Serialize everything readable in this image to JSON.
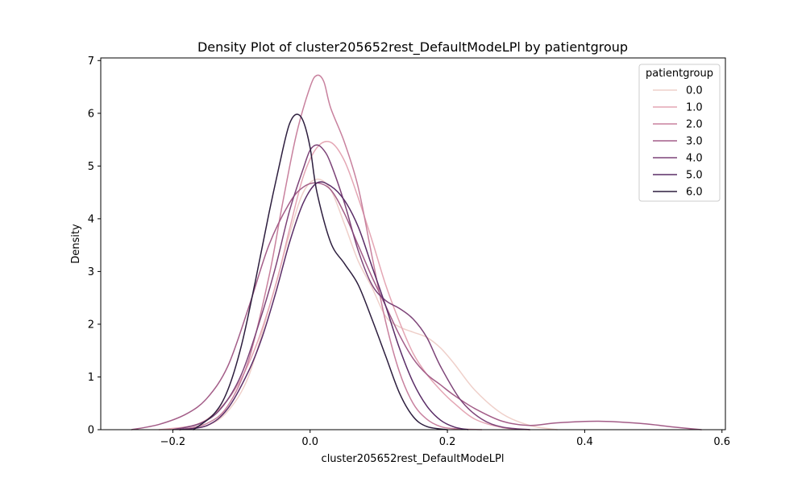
{
  "chart_data": {
    "type": "line",
    "kind": "kde-density",
    "title": "Density Plot of cluster205652rest_DefaultModeLPl by patientgroup",
    "xlabel": "cluster205652rest_DefaultModeLPl",
    "ylabel": "Density",
    "xlim": [
      -0.305,
      0.605
    ],
    "ylim": [
      0,
      7.05
    ],
    "xticks": [
      -0.2,
      0.0,
      0.2,
      0.4,
      0.6
    ],
    "xtick_labels": [
      "−0.2",
      "0.0",
      "0.2",
      "0.4",
      "0.6"
    ],
    "yticks": [
      0,
      1,
      2,
      3,
      4,
      5,
      6,
      7
    ],
    "ytick_labels": [
      "0",
      "1",
      "2",
      "3",
      "4",
      "5",
      "6",
      "7"
    ],
    "grid": false,
    "legend": {
      "title": "patientgroup",
      "placement": "top-right"
    },
    "series": [
      {
        "name": "0.0",
        "color": "#efd0ca",
        "x": [
          -0.19,
          -0.15,
          -0.12,
          -0.09,
          -0.06,
          -0.03,
          -0.01,
          0.01,
          0.03,
          0.05,
          0.07,
          0.09,
          0.11,
          0.13,
          0.15,
          0.17,
          0.19,
          0.21,
          0.24,
          0.28,
          0.32,
          0.36
        ],
        "y": [
          0.0,
          0.08,
          0.35,
          1.0,
          2.3,
          3.7,
          4.5,
          4.75,
          4.55,
          3.9,
          3.2,
          2.7,
          2.15,
          1.95,
          1.85,
          1.75,
          1.55,
          1.25,
          0.75,
          0.3,
          0.08,
          0.0
        ]
      },
      {
        "name": "1.0",
        "color": "#e4a6b4",
        "x": [
          -0.22,
          -0.17,
          -0.14,
          -0.11,
          -0.08,
          -0.05,
          -0.03,
          -0.01,
          0.01,
          0.03,
          0.05,
          0.07,
          0.09,
          0.11,
          0.13,
          0.15,
          0.17,
          0.19,
          0.21,
          0.24,
          0.28,
          0.32
        ],
        "y": [
          0.0,
          0.08,
          0.3,
          0.75,
          1.55,
          2.75,
          3.8,
          4.8,
          5.35,
          5.45,
          5.1,
          4.4,
          3.6,
          2.75,
          2.05,
          1.45,
          1.05,
          0.75,
          0.5,
          0.2,
          0.04,
          0.0
        ]
      },
      {
        "name": "2.0",
        "color": "#c8819e",
        "x": [
          -0.19,
          -0.15,
          -0.12,
          -0.09,
          -0.06,
          -0.04,
          -0.02,
          0.0,
          0.01,
          0.02,
          0.03,
          0.05,
          0.07,
          0.09,
          0.11,
          0.13,
          0.15,
          0.17,
          0.19,
          0.21,
          0.25
        ],
        "y": [
          0.0,
          0.12,
          0.45,
          1.3,
          2.9,
          4.3,
          5.6,
          6.5,
          6.72,
          6.6,
          6.1,
          5.45,
          4.6,
          3.3,
          2.05,
          1.1,
          0.5,
          0.2,
          0.06,
          0.02,
          0.0
        ]
      },
      {
        "name": "3.0",
        "color": "#a35d88",
        "x": [
          -0.26,
          -0.22,
          -0.18,
          -0.15,
          -0.12,
          -0.09,
          -0.06,
          -0.03,
          -0.01,
          0.01,
          0.03,
          0.05,
          0.07,
          0.09,
          0.11,
          0.13,
          0.15,
          0.17,
          0.19,
          0.21,
          0.24,
          0.28,
          0.32,
          0.36,
          0.42,
          0.48,
          0.53,
          0.57
        ],
        "y": [
          0.0,
          0.1,
          0.3,
          0.6,
          1.2,
          2.3,
          3.5,
          4.3,
          4.6,
          4.68,
          4.55,
          4.1,
          3.5,
          2.9,
          2.35,
          1.8,
          1.35,
          1.05,
          0.85,
          0.65,
          0.4,
          0.16,
          0.08,
          0.13,
          0.16,
          0.12,
          0.05,
          0.0
        ]
      },
      {
        "name": "4.0",
        "color": "#7d4478",
        "x": [
          -0.2,
          -0.16,
          -0.13,
          -0.1,
          -0.07,
          -0.05,
          -0.03,
          -0.01,
          0.0,
          0.01,
          0.02,
          0.03,
          0.05,
          0.07,
          0.09,
          0.11,
          0.13,
          0.15,
          0.17,
          0.19,
          0.22,
          0.25,
          0.28,
          0.32
        ],
        "y": [
          0.0,
          0.12,
          0.4,
          1.05,
          2.2,
          3.1,
          4.15,
          4.95,
          5.3,
          5.4,
          5.3,
          5.05,
          4.3,
          3.4,
          2.75,
          2.45,
          2.3,
          2.1,
          1.75,
          1.2,
          0.55,
          0.2,
          0.05,
          0.0
        ]
      },
      {
        "name": "5.0",
        "color": "#5a2d67",
        "x": [
          -0.19,
          -0.15,
          -0.12,
          -0.09,
          -0.07,
          -0.05,
          -0.03,
          -0.01,
          0.01,
          0.03,
          0.05,
          0.07,
          0.09,
          0.11,
          0.13,
          0.15,
          0.17,
          0.19,
          0.21,
          0.23
        ],
        "y": [
          0.0,
          0.08,
          0.4,
          1.1,
          1.75,
          2.6,
          3.55,
          4.3,
          4.68,
          4.62,
          4.35,
          3.85,
          3.1,
          2.35,
          1.55,
          0.9,
          0.45,
          0.18,
          0.05,
          0.0
        ]
      },
      {
        "name": "6.0",
        "color": "#2d1e3e",
        "x": [
          -0.17,
          -0.14,
          -0.12,
          -0.1,
          -0.08,
          -0.06,
          -0.04,
          -0.03,
          -0.02,
          -0.01,
          0.0,
          0.01,
          0.03,
          0.05,
          0.07,
          0.09,
          0.11,
          0.13,
          0.15,
          0.17,
          0.2
        ],
        "y": [
          0.0,
          0.3,
          0.75,
          1.6,
          2.8,
          4.1,
          5.3,
          5.8,
          5.98,
          5.85,
          5.35,
          4.5,
          3.55,
          3.15,
          2.75,
          2.1,
          1.4,
          0.7,
          0.25,
          0.06,
          0.0
        ]
      }
    ]
  }
}
